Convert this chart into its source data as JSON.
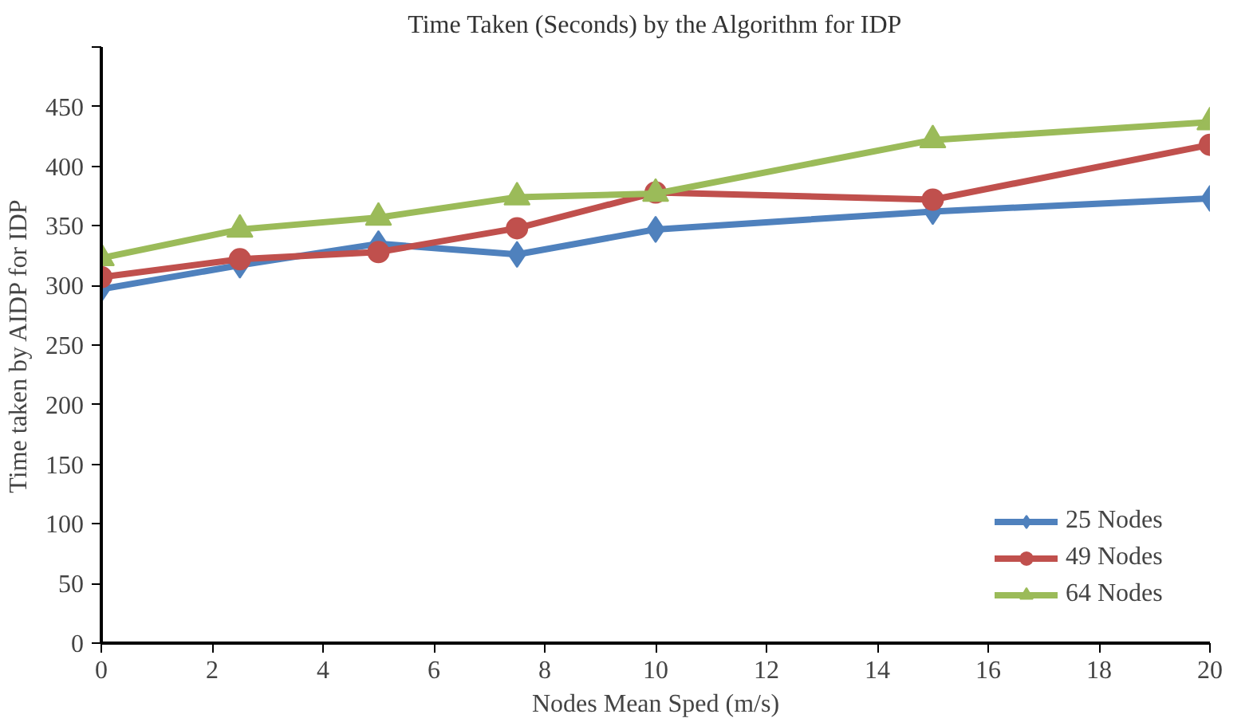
{
  "chart_data": {
    "type": "line",
    "title": "Time Taken (Seconds) by the Algorithm for IDP",
    "xlabel": "Nodes Mean Sped (m/s)",
    "ylabel": "Time taken by AIDP for IDP",
    "x": [
      0,
      2.5,
      5,
      7.5,
      10,
      15,
      20
    ],
    "series": [
      {
        "name": "25 Nodes",
        "color": "#4f81bd",
        "marker": "diamond",
        "values": [
          297,
          317,
          335,
          326,
          347,
          362,
          373
        ]
      },
      {
        "name": "49 Nodes",
        "color": "#c0504d",
        "marker": "circle",
        "values": [
          307,
          322,
          328,
          348,
          378,
          372,
          418
        ]
      },
      {
        "name": "64 Nodes",
        "color": "#9bbb59",
        "marker": "triangle",
        "values": [
          323,
          347,
          357,
          374,
          377,
          422,
          437
        ]
      }
    ],
    "xlim": [
      0,
      20
    ],
    "xticks": [
      0,
      2,
      4,
      6,
      8,
      10,
      12,
      14,
      16,
      18,
      20
    ],
    "ylim": [
      0,
      500
    ],
    "yticks": [
      0,
      50,
      100,
      150,
      200,
      250,
      300,
      350,
      400,
      450,
      {
        "value": 500,
        "label": null
      }
    ],
    "annotations": [
      "100"
    ],
    "grid": false,
    "legend": "right",
    "line_style": "solid"
  }
}
